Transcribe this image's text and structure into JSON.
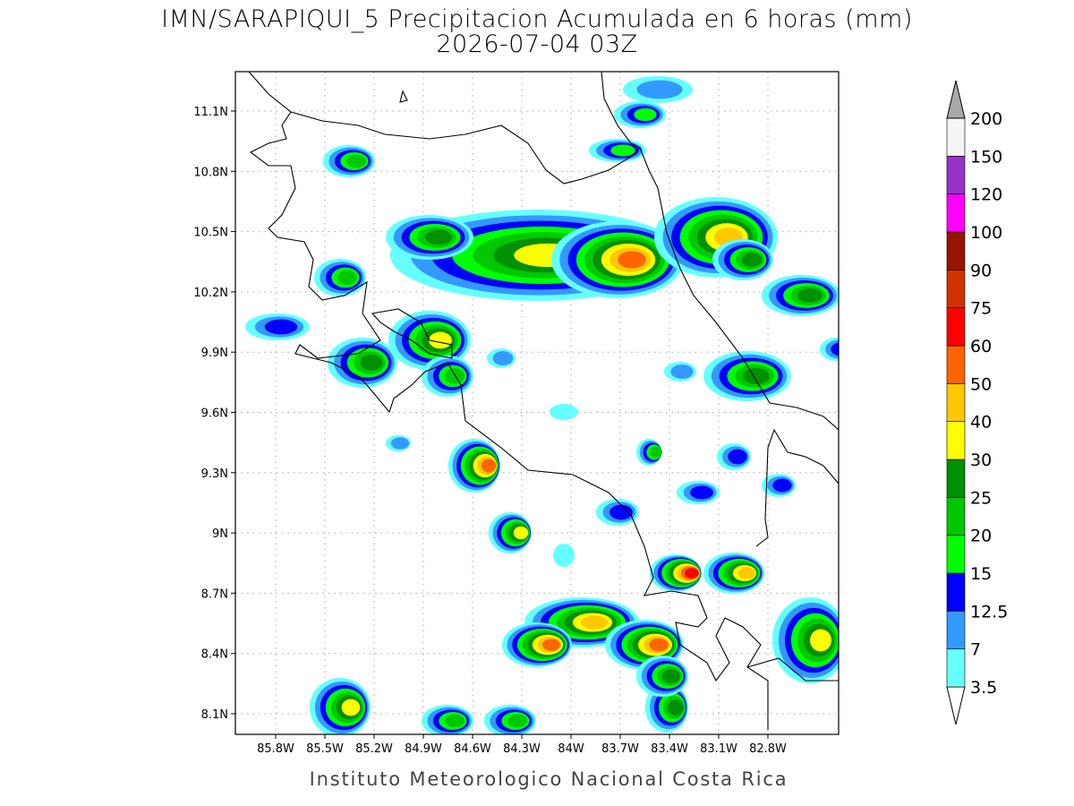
{
  "title": "IMN/SARAPIQUI_5 Precipitacion Acumulada en 6 horas (mm)",
  "subtitle": "2026-07-04 03Z",
  "map": {
    "xticks": [
      "85.8W",
      "85.5W",
      "85.2W",
      "84.9W",
      "84.6W",
      "84.3W",
      "84W",
      "83.7W",
      "83.4W",
      "83.1W",
      "82.8W"
    ],
    "yticks": [
      "11.1N",
      "10.8N",
      "10.5N",
      "10.2N",
      "9.9N",
      "9.6N",
      "9.3N",
      "9N",
      "8.7N",
      "8.4N",
      "8.1N"
    ]
  },
  "colorbar": {
    "levels": [
      3.5,
      7,
      12.5,
      15,
      20,
      25,
      30,
      40,
      50,
      60,
      75,
      90,
      100,
      120,
      150,
      200
    ],
    "colors": [
      "#66ffff",
      "#3399ff",
      "#0000ff",
      "#00ff00",
      "#00c800",
      "#009000",
      "#ffff00",
      "#ffc800",
      "#ff6400",
      "#ff0000",
      "#d23200",
      "#961400",
      "#ff00ff",
      "#9632c8",
      "#f5f5f5"
    ],
    "under_color": "#ffffff",
    "over_color": "#a8a8a8"
  },
  "footer": "Instituto Meteorologico Nacional Costa Rica"
}
